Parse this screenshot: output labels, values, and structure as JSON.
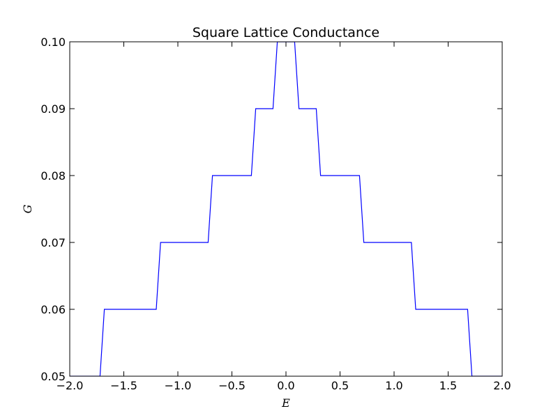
{
  "chart_data": {
    "type": "line",
    "title": "Square Lattice Conductance",
    "xlabel": "E",
    "ylabel": "G",
    "xlim": [
      -2.0,
      2.0
    ],
    "ylim": [
      0.05,
      0.1
    ],
    "xticks": [
      "−2.0",
      "−1.5",
      "−1.0",
      "−0.5",
      "0.0",
      "0.5",
      "1.0",
      "1.5",
      "2.0"
    ],
    "xtick_values": [
      -2.0,
      -1.5,
      -1.0,
      -0.5,
      0.0,
      0.5,
      1.0,
      1.5,
      2.0
    ],
    "yticks": [
      "0.05",
      "0.06",
      "0.07",
      "0.08",
      "0.09",
      "0.10"
    ],
    "ytick_values": [
      0.05,
      0.06,
      0.07,
      0.08,
      0.09,
      0.1
    ],
    "grid": false,
    "line_color": "#0000ff",
    "series": [
      {
        "x": [
          -2.0,
          -1.72,
          -1.68,
          -1.2,
          -1.16,
          -0.72,
          -0.68,
          -0.32,
          -0.28,
          -0.12,
          -0.08,
          0.08,
          0.12,
          0.28,
          0.32,
          0.68,
          0.72,
          1.16,
          1.2,
          1.68,
          1.72,
          2.0
        ],
        "y": [
          0.05,
          0.05,
          0.06,
          0.06,
          0.07,
          0.07,
          0.08,
          0.08,
          0.09,
          0.09,
          0.1,
          0.1,
          0.09,
          0.09,
          0.08,
          0.08,
          0.07,
          0.07,
          0.06,
          0.06,
          0.05,
          0.05
        ]
      }
    ]
  }
}
